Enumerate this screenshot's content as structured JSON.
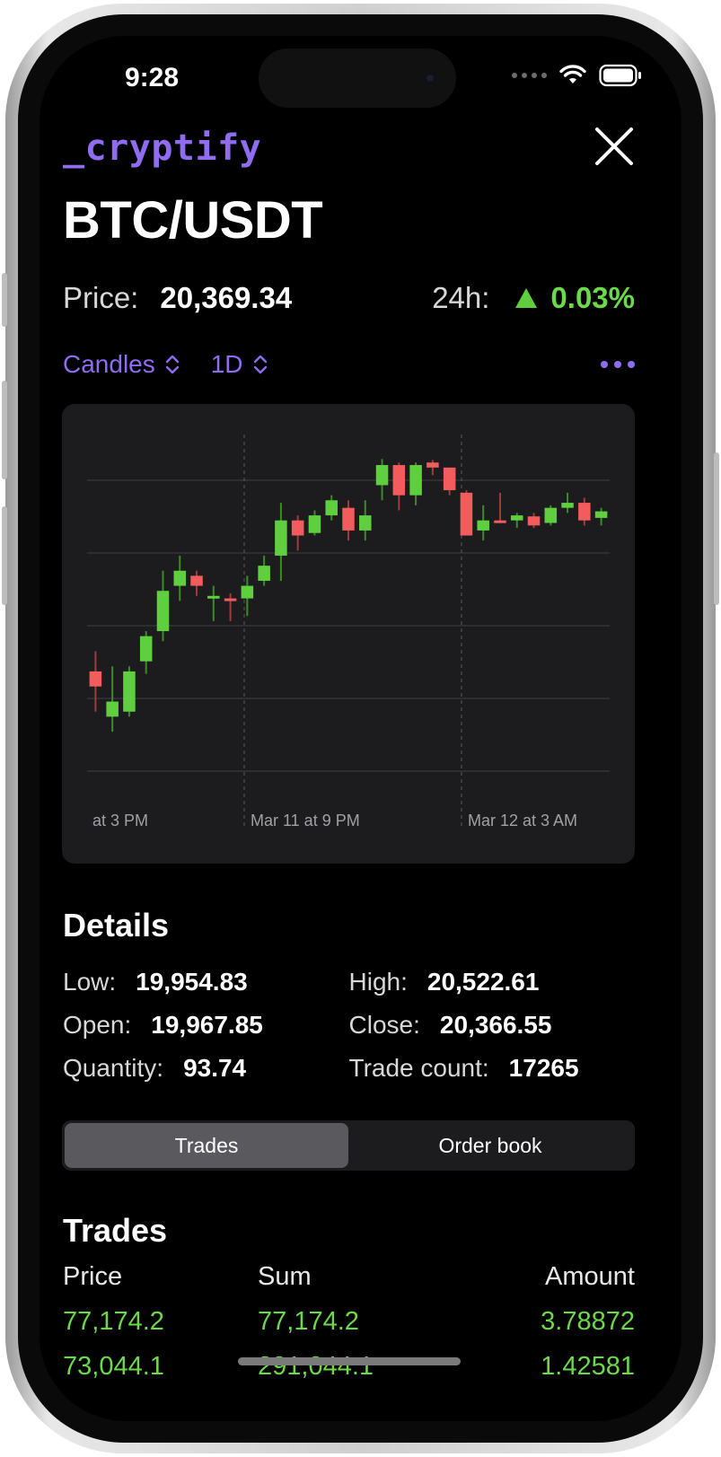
{
  "status_bar": {
    "time": "9:28"
  },
  "header": {
    "logo": "_cryptify",
    "pair": "BTC/USDT"
  },
  "price": {
    "label": "Price:",
    "value": "20,369.34",
    "change_label": "24h:",
    "change_value": "0.03%",
    "change_direction": "up"
  },
  "controls": {
    "chart_type": "Candles",
    "interval": "1D"
  },
  "chart_data": {
    "type": "candlestick",
    "x_tick_labels": [
      "at 3 PM",
      "Mar 11 at 9 PM",
      "Mar 12 at 3 AM"
    ],
    "grid": true,
    "ylim": [
      19900,
      20560
    ],
    "series": [
      {
        "o": 20100,
        "h": 20140,
        "l": 20020,
        "c": 20070
      },
      {
        "o": 20010,
        "h": 20110,
        "l": 19980,
        "c": 20040
      },
      {
        "o": 20020,
        "h": 20110,
        "l": 20010,
        "c": 20100
      },
      {
        "o": 20120,
        "h": 20180,
        "l": 20095,
        "c": 20170
      },
      {
        "o": 20180,
        "h": 20300,
        "l": 20160,
        "c": 20260
      },
      {
        "o": 20270,
        "h": 20330,
        "l": 20240,
        "c": 20300
      },
      {
        "o": 20290,
        "h": 20300,
        "l": 20250,
        "c": 20270
      },
      {
        "o": 20250,
        "h": 20270,
        "l": 20200,
        "c": 20250
      },
      {
        "o": 20245,
        "h": 20255,
        "l": 20200,
        "c": 20240
      },
      {
        "o": 20245,
        "h": 20290,
        "l": 20210,
        "c": 20270
      },
      {
        "o": 20280,
        "h": 20330,
        "l": 20270,
        "c": 20310
      },
      {
        "o": 20330,
        "h": 20435,
        "l": 20280,
        "c": 20400
      },
      {
        "o": 20400,
        "h": 20410,
        "l": 20340,
        "c": 20370
      },
      {
        "o": 20375,
        "h": 20420,
        "l": 20370,
        "c": 20410
      },
      {
        "o": 20410,
        "h": 20450,
        "l": 20400,
        "c": 20440
      },
      {
        "o": 20425,
        "h": 20440,
        "l": 20360,
        "c": 20380
      },
      {
        "o": 20380,
        "h": 20440,
        "l": 20360,
        "c": 20410
      },
      {
        "o": 20470,
        "h": 20522,
        "l": 20440,
        "c": 20510
      },
      {
        "o": 20510,
        "h": 20515,
        "l": 20420,
        "c": 20450
      },
      {
        "o": 20450,
        "h": 20515,
        "l": 20430,
        "c": 20510
      },
      {
        "o": 20515,
        "h": 20520,
        "l": 20490,
        "c": 20505
      },
      {
        "o": 20505,
        "h": 20500,
        "l": 20450,
        "c": 20460
      },
      {
        "o": 20455,
        "h": 20460,
        "l": 20370,
        "c": 20370
      },
      {
        "o": 20380,
        "h": 20430,
        "l": 20360,
        "c": 20400
      },
      {
        "o": 20400,
        "h": 20455,
        "l": 20395,
        "c": 20398
      },
      {
        "o": 20400,
        "h": 20415,
        "l": 20385,
        "c": 20410
      },
      {
        "o": 20408,
        "h": 20415,
        "l": 20385,
        "c": 20390
      },
      {
        "o": 20395,
        "h": 20430,
        "l": 20390,
        "c": 20425
      },
      {
        "o": 20425,
        "h": 20455,
        "l": 20415,
        "c": 20435
      },
      {
        "o": 20435,
        "h": 20445,
        "l": 20390,
        "c": 20400
      },
      {
        "o": 20405,
        "h": 20425,
        "l": 20390,
        "c": 20418
      }
    ],
    "up_color": "#5fcf3f",
    "down_color": "#f25c5c"
  },
  "details": {
    "title": "Details",
    "rows": [
      [
        {
          "label": "Low:",
          "value": "19,954.83"
        },
        {
          "label": "High:",
          "value": "20,522.61"
        }
      ],
      [
        {
          "label": "Open:",
          "value": "19,967.85"
        },
        {
          "label": "Close:",
          "value": "20,366.55"
        }
      ],
      [
        {
          "label": "Quantity:",
          "value": "93.74"
        },
        {
          "label": "Trade count:",
          "value": "17265"
        }
      ]
    ]
  },
  "segmented": {
    "trades": "Trades",
    "order_book": "Order book",
    "selected": "Trades"
  },
  "trades": {
    "title": "Trades",
    "headers": {
      "price": "Price",
      "sum": "Sum",
      "amount": "Amount"
    },
    "rows": [
      {
        "price": "77,174.2",
        "sum": "77,174.2",
        "amount": "3.78872"
      },
      {
        "price": "73,044.1",
        "sum": "291,044.1",
        "amount": "1.42581"
      }
    ]
  },
  "colors": {
    "accent": "#8f6cf0",
    "positive": "#6bd94a",
    "negative": "#f25c5c",
    "card": "#1c1c1e"
  }
}
